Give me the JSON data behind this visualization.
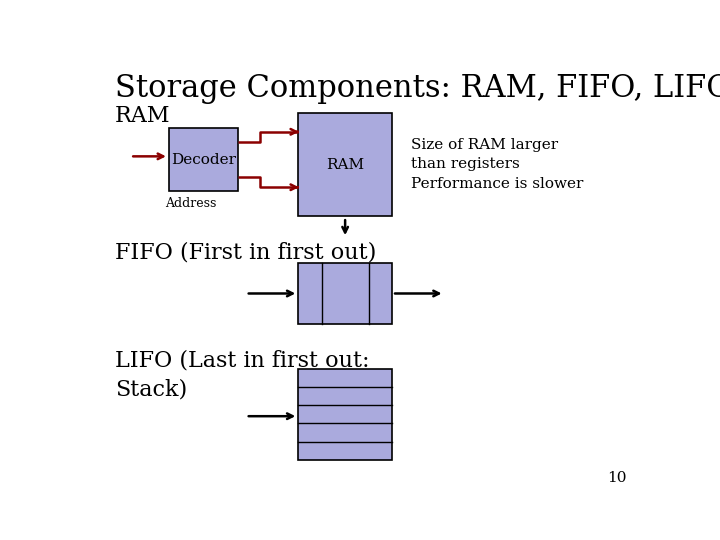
{
  "title": "Storage Components: RAM, FIFO, LIFO",
  "title_fontsize": 22,
  "background_color": "#ffffff",
  "box_fill": "#aaaadd",
  "box_edge": "#000000",
  "dark_red": "#8b0000",
  "black": "#000000",
  "page_number": "10",
  "ram_label": "RAM",
  "decoder_label": "Decoder",
  "address_label": "Address",
  "ram_box_label": "RAM",
  "size_text": "Size of RAM larger\nthan registers\nPerformance is slower",
  "fifo_label": "FIFO (First in first out)",
  "lifo_label": "LIFO (Last in first out:\nStack)"
}
